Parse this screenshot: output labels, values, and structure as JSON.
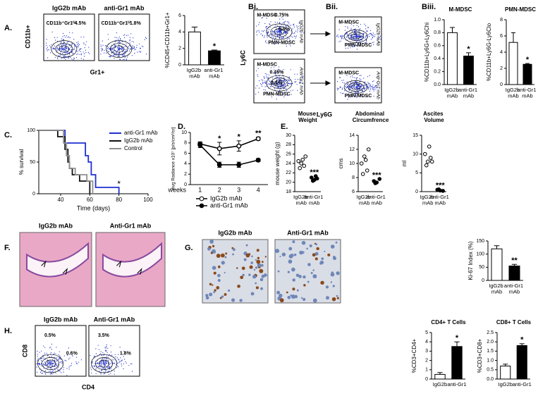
{
  "panel_labels": [
    "A.",
    "Bi.",
    "Bii.",
    "Biii.",
    "C.",
    "D.",
    "E.",
    "F.",
    "G.",
    "H."
  ],
  "flow": [
    {
      "title": "IgG2b mAb",
      "gates": [
        "CD11b⁺Gr1ʰⁱ",
        "4.5%"
      ]
    },
    {
      "title": "anti-Gr1 mAb",
      "gates": [
        "CD11b⁺Gr1ʰⁱ",
        "1.8%"
      ]
    },
    {
      "side": "IgG2b mAb",
      "gates": [
        "M-MDSC",
        "0.75%",
        "5.9%",
        "PMN-MDSC"
      ]
    },
    {
      "side": "Anti-Gr1 mAb",
      "gates": [
        "M-MDSC",
        "0.45%",
        "2.6%",
        "PMN-MDSC"
      ]
    },
    {
      "side": "IgG2b mAb",
      "gates": [
        "M-MDSC",
        "PMN-MDSC"
      ]
    },
    {
      "side": "Anti-Gr1 mAb",
      "gates": [
        "M-MDSC",
        "PMN-MDSC"
      ]
    },
    {
      "title": "IgG2b mAb",
      "gates": [
        "0.5%",
        "0.6%"
      ]
    },
    {
      "title": "Anti-Gr1 mAb",
      "gates": [
        "3.5%",
        "1.8%"
      ]
    }
  ],
  "flow_axes": [
    {
      "y": "CD11b+",
      "x": "Gr1+"
    },
    {
      "y": "Ly6C",
      "x": "Ly6G"
    },
    {
      "y": "CD8",
      "x": "CD4"
    }
  ],
  "images": [
    {
      "title": "IgG2b mAb"
    },
    {
      "title": "Anti-Gr1 mAb"
    },
    {
      "title": "IgG2b mAb"
    },
    {
      "title": "Anti-Gr1 mAb"
    }
  ],
  "charts": [
    {
      "type": "bar",
      "ylabel": "%CD45+CD11b+Gr1+",
      "categories": [
        "IgG2b mAb",
        "anti-Gr1 mAb"
      ],
      "values": [
        4.0,
        1.7
      ],
      "errors": [
        0.6,
        0.1
      ],
      "colors": [
        "#ffffff",
        "#000000"
      ],
      "ylim": [
        0,
        6
      ],
      "yticks": [
        0,
        2,
        4,
        6
      ],
      "annotations": [
        "*"
      ]
    },
    {
      "type": "bar",
      "title": "M-MDSC",
      "ylabel": "%CD11b+Ly6G+Ly6Chi",
      "categories": [
        "IgG2b mAb",
        "anti-Gr1 mAb"
      ],
      "values": [
        0.8,
        0.44
      ],
      "errors": [
        0.08,
        0.05
      ],
      "colors": [
        "#ffffff",
        "#000000"
      ],
      "ylim": [
        0,
        1
      ],
      "yticks": [
        {
          "value": 0,
          "label": "0.0"
        },
        0.2,
        0.4,
        0.6,
        0.8,
        {
          "value": 1,
          "label": "1.0"
        }
      ],
      "annotations": [
        "*"
      ]
    },
    {
      "type": "bar",
      "title": "PMN-MDSC",
      "ylabel": "%CD11b+Ly6G-Ly6Clo",
      "categories": [
        "IgG2b mAb",
        "anti-Gr1 mAb"
      ],
      "values": [
        5.2,
        2.5
      ],
      "errors": [
        1.2,
        0.1
      ],
      "colors": [
        "#ffffff",
        "#000000"
      ],
      "ylim": [
        0,
        8
      ],
      "yticks": [
        0,
        2,
        4,
        6,
        8
      ],
      "annotations": [
        "*"
      ]
    },
    {
      "type": "step",
      "xlabel": "Time (days)",
      "ylabel": "% survival",
      "xlim": [
        25,
        100
      ],
      "xticks": [
        40,
        60,
        80,
        100
      ],
      "ylim": [
        0,
        100
      ],
      "yticks": [
        0,
        50,
        100
      ],
      "annotations": [
        "*"
      ],
      "series": [
        {
          "name": "anti-Gr1 mAb",
          "color": "#1f2fd0",
          "x": [
            25,
            43,
            57,
            59,
            61,
            64,
            80
          ],
          "values": [
            100,
            80,
            60,
            50,
            30,
            10,
            0
          ]
        },
        {
          "name": "IgG2b mAb",
          "color": "#111111",
          "x": [
            25,
            38,
            43,
            45,
            46,
            48,
            53,
            60
          ],
          "values": [
            100,
            90,
            70,
            50,
            40,
            30,
            20,
            0
          ]
        },
        {
          "name": "Control",
          "color": "#909090",
          "x": [
            25,
            42,
            44,
            46,
            50,
            58,
            62
          ],
          "values": [
            100,
            80,
            60,
            40,
            30,
            20,
            0
          ]
        }
      ]
    },
    {
      "type": "line",
      "ylabel": "Avg Radiance x10⁷ [p/s/cm²/sr]",
      "xlabel": "weeks",
      "categories": [
        "1",
        "2",
        "3",
        "4"
      ],
      "ylim": [
        0,
        10
      ],
      "yticks": [
        0,
        2,
        4,
        6,
        8,
        10
      ],
      "annotations": [
        "*",
        "*",
        "**"
      ],
      "series": [
        {
          "name": "IgG2b mAb",
          "marker": "open",
          "values": [
            7.8,
            6.9,
            7.4,
            8.8
          ],
          "errors": [
            0.4,
            1.2,
            1.0,
            0.3
          ]
        },
        {
          "name": "anti-Gr1 mAb",
          "marker": "filled",
          "values": [
            7.6,
            3.8,
            3.8,
            4.7
          ],
          "errors": [
            0.5,
            0.5,
            0.5,
            0.3
          ]
        }
      ]
    },
    {
      "type": "dot",
      "title": "Mouse Weight",
      "ylabel": "mouse weight (g)",
      "categories": [
        "IgG2b mAb",
        "anti-Gr1 mAb"
      ],
      "ylim": [
        18,
        30
      ],
      "yticks": [
        18,
        20,
        22,
        24,
        26,
        28,
        30
      ],
      "annotations": [
        "***"
      ],
      "series": [
        {
          "marker": "open",
          "values": [
            24.5,
            24,
            23.5,
            23,
            24.8,
            25.5
          ]
        },
        {
          "marker": "filled",
          "values": [
            21,
            20.5,
            20.8,
            20.3,
            21.3
          ]
        }
      ]
    },
    {
      "type": "dot",
      "title": "Abdominal Circumfrence",
      "ylabel": "cms",
      "categories": [
        "IgG2b mAb",
        "anti-Gr1 mAb"
      ],
      "ylim": [
        6,
        14
      ],
      "yticks": [
        6,
        8,
        10,
        12,
        14
      ],
      "annotations": [
        "***"
      ],
      "series": [
        {
          "marker": "open",
          "values": [
            10,
            11,
            9,
            8.5,
            10.5,
            12
          ]
        },
        {
          "marker": "filled",
          "values": [
            7.5,
            7.3,
            7.8,
            7.2
          ]
        }
      ]
    },
    {
      "type": "dot",
      "title": "Ascites Volume",
      "ylabel": "ml",
      "categories": [
        "IgG2b mAb",
        "anti-Gr1 mAb"
      ],
      "ylim": [
        0,
        15
      ],
      "yticks": [
        0,
        5,
        10,
        15
      ],
      "annotations": [
        "***"
      ],
      "series": [
        {
          "marker": "open",
          "values": [
            10,
            8,
            9,
            7,
            12,
            8
          ]
        },
        {
          "marker": "filled",
          "values": [
            0.5,
            0.3,
            0.2,
            0.6
          ]
        }
      ]
    },
    {
      "type": "bar",
      "ylabel": "Ki-67 Index (%)",
      "categories": [
        "IgG2b mAb",
        "anti-Gr1 mAb"
      ],
      "values": [
        120,
        55
      ],
      "errors": [
        12,
        6
      ],
      "colors": [
        "#ffffff",
        "#000000"
      ],
      "ylim": [
        0,
        150
      ],
      "yticks": [
        0,
        50,
        100,
        150
      ],
      "annotations": [
        "**"
      ]
    },
    {
      "type": "bar",
      "title": "CD4+ T Cells",
      "ylabel": "%CD3+CD4+",
      "categories": [
        "IgG2b",
        "anti-Gr1"
      ],
      "values": [
        0.5,
        3.5
      ],
      "errors": [
        0.2,
        0.5
      ],
      "colors": [
        "#ffffff",
        "#000000"
      ],
      "ylim": [
        0,
        5
      ],
      "yticks": [
        0,
        1,
        2,
        3,
        4,
        5
      ],
      "annotations": [
        "*"
      ]
    },
    {
      "type": "bar",
      "title": "CD8+ T Cells",
      "ylabel": "%CD3+CD8+",
      "categories": [
        "IgG2b",
        "anti-Gr1"
      ],
      "values": [
        0.7,
        1.8
      ],
      "errors": [
        0.1,
        0.1
      ],
      "colors": [
        "#ffffff",
        "#000000"
      ],
      "ylim": [
        0,
        2.5
      ],
      "yticks": [
        {
          "value": 0,
          "label": "0.0"
        },
        0.5,
        {
          "value": 1,
          "label": "1.0"
        },
        1.5,
        {
          "value": 2,
          "label": "2.0"
        },
        2.5
      ],
      "annotations": [
        "*"
      ]
    }
  ]
}
